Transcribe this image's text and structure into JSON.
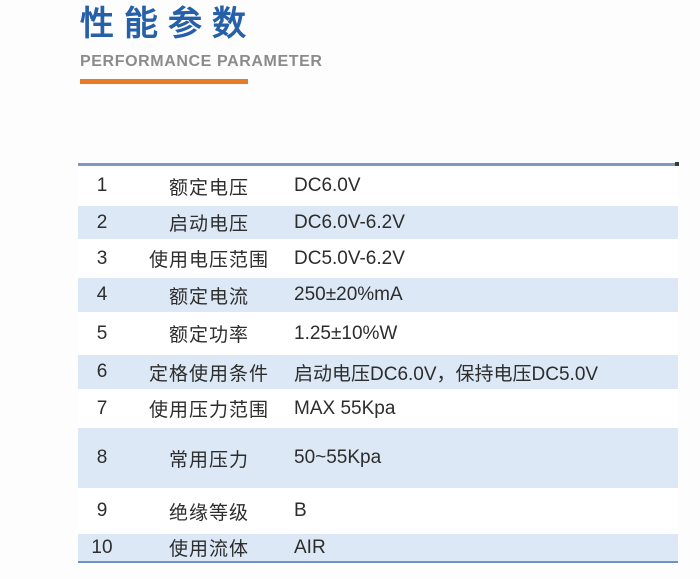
{
  "header": {
    "title": "性能参数",
    "subtitle": "PERFORMANCE PARAMETER"
  },
  "colors": {
    "title_blue": "#2560a8",
    "subtitle_gray": "#8b8b8b",
    "accent_orange": "#e87b26",
    "row_stripe_blue": "#dce8f5",
    "table_top_border": "#7e99b9",
    "table_bottom_border": "#6b94c5",
    "text": "#2d2d2d"
  },
  "table": {
    "rows": [
      {
        "no": "1",
        "name": "额定电压",
        "value": "DC6.0V"
      },
      {
        "no": "2",
        "name": "启动电压",
        "value": "DC6.0V-6.2V"
      },
      {
        "no": "3",
        "name": "使用电压范围",
        "value": "DC5.0V-6.2V"
      },
      {
        "no": "4",
        "name": "额定电流",
        "value": "250±20%mA"
      },
      {
        "no": "5",
        "name": "额定功率",
        "value": "1.25±10%W"
      },
      {
        "no": "6",
        "name": "定格使用条件",
        "value": "启动电压DC6.0V，保持电压DC5.0V"
      },
      {
        "no": "7",
        "name": "使用压力范围",
        "value": "MAX 55Kpa"
      },
      {
        "no": "8",
        "name": "常用压力",
        "value": "50~55Kpa"
      },
      {
        "no": "9",
        "name": "绝缘等级",
        "value": "B"
      },
      {
        "no": "10",
        "name": "使用流体",
        "value": "AIR"
      }
    ]
  }
}
